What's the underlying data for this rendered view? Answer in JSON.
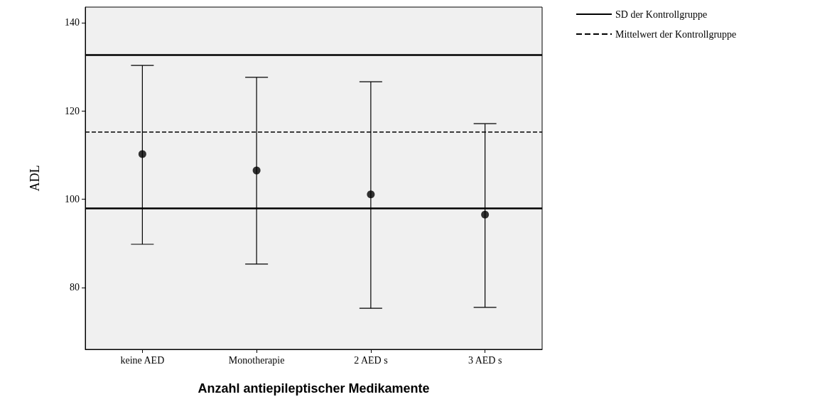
{
  "chart_data": {
    "type": "scatter",
    "xlabel": "Anzahl antiepileptischer Medikamente",
    "ylabel": "ADL",
    "categories": [
      "keine AED",
      "Monotherapie",
      "2 AED s",
      "3 AED s"
    ],
    "values": [
      110.2,
      106.5,
      101.1,
      96.5
    ],
    "errors": [
      [
        89.8,
        130.3
      ],
      [
        85.3,
        127.6
      ],
      [
        75.3,
        126.6
      ],
      [
        75.5,
        117.1
      ]
    ],
    "color": "#000000",
    "marker": "circle",
    "ylim": [
      66,
      143.5
    ],
    "yticks": [
      80,
      100,
      120,
      140
    ],
    "grid": false,
    "legend": "top right",
    "ref_lines": [
      {
        "axis": "y",
        "value": 132.7,
        "label": "SD der Kontrollgruppe",
        "line_style": "solid",
        "color": "#000000"
      },
      {
        "axis": "y",
        "value": 97.9,
        "label": null,
        "line_style": "solid",
        "color": "#000000"
      },
      {
        "axis": "y",
        "value": 115.3,
        "label": "Mittelwert der Kontrollgruppe",
        "line_style": "dashed",
        "color": "#000000"
      }
    ]
  }
}
